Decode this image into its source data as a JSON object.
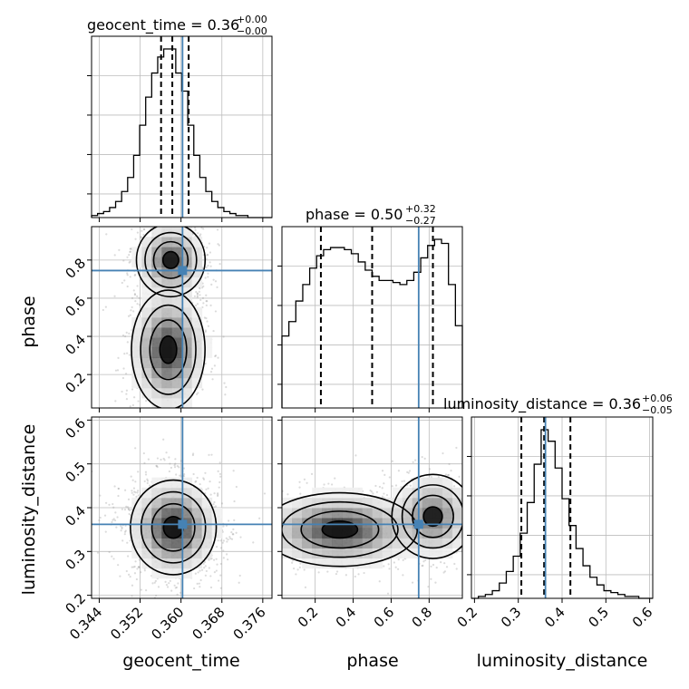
{
  "chart_data": {
    "type": "corner",
    "parameters": [
      "geocent_time",
      "phase",
      "luminosity_distance"
    ],
    "truths": {
      "geocent_time": 0.3603,
      "phase": 0.745,
      "luminosity_distance": 0.362
    },
    "ranges": {
      "geocent_time": [
        0.3425,
        0.3778
      ],
      "phase": [
        0.025,
        0.975
      ],
      "luminosity_distance": [
        0.193,
        0.607
      ]
    },
    "ticks": {
      "geocent_time": [
        "0.344",
        "0.352",
        "0.360",
        "0.368",
        "0.376"
      ],
      "phase": [
        "0.2",
        "0.4",
        "0.6",
        "0.8"
      ],
      "luminosity_distance": [
        "0.2",
        "0.3",
        "0.4",
        "0.5",
        "0.6"
      ]
    },
    "titles": {
      "geocent_time": {
        "main": "geocent_time = 0.36",
        "sup": "+0.00",
        "sub": "−0.00"
      },
      "phase": {
        "main": "phase = 0.50",
        "sup": "+0.32",
        "sub": "−0.27"
      },
      "luminosity_distance": {
        "main": "luminosity_distance = 0.36",
        "sup": "+0.06",
        "sub": "−0.05"
      }
    },
    "quantiles": {
      "geocent_time": [
        0.3561,
        0.3583,
        0.3615
      ],
      "phase": [
        0.23,
        0.5,
        0.82
      ],
      "luminosity_distance": [
        0.307,
        0.359,
        0.419
      ]
    },
    "histograms": {
      "geocent_time": {
        "range": [
          0.3425,
          0.3778
        ],
        "counts": [
          1,
          2,
          3,
          5,
          8,
          13,
          20,
          31,
          46,
          60,
          72,
          80,
          84,
          84,
          72,
          63,
          46,
          31,
          20,
          13,
          8,
          5,
          3,
          2,
          1,
          1,
          0,
          0,
          0,
          0
        ]
      },
      "phase": {
        "range": [
          0.025,
          0.975
        ],
        "counts": [
          35,
          42,
          52,
          60,
          68,
          74,
          77,
          78,
          78,
          77,
          75,
          71,
          67,
          64,
          62,
          62,
          61,
          60,
          62,
          66,
          73,
          79,
          82,
          80,
          60,
          40
        ]
      },
      "luminosity_distance": {
        "range": [
          0.193,
          0.607
        ],
        "counts": [
          0,
          1,
          2,
          4,
          8,
          14,
          22,
          34,
          50,
          70,
          88,
          82,
          68,
          52,
          38,
          26,
          17,
          11,
          7,
          4,
          3,
          2,
          1,
          1,
          0,
          0
        ]
      }
    },
    "grid": true,
    "colors": {
      "truth": "#4682b4",
      "contour": "#000000",
      "hist": "#000000"
    }
  }
}
